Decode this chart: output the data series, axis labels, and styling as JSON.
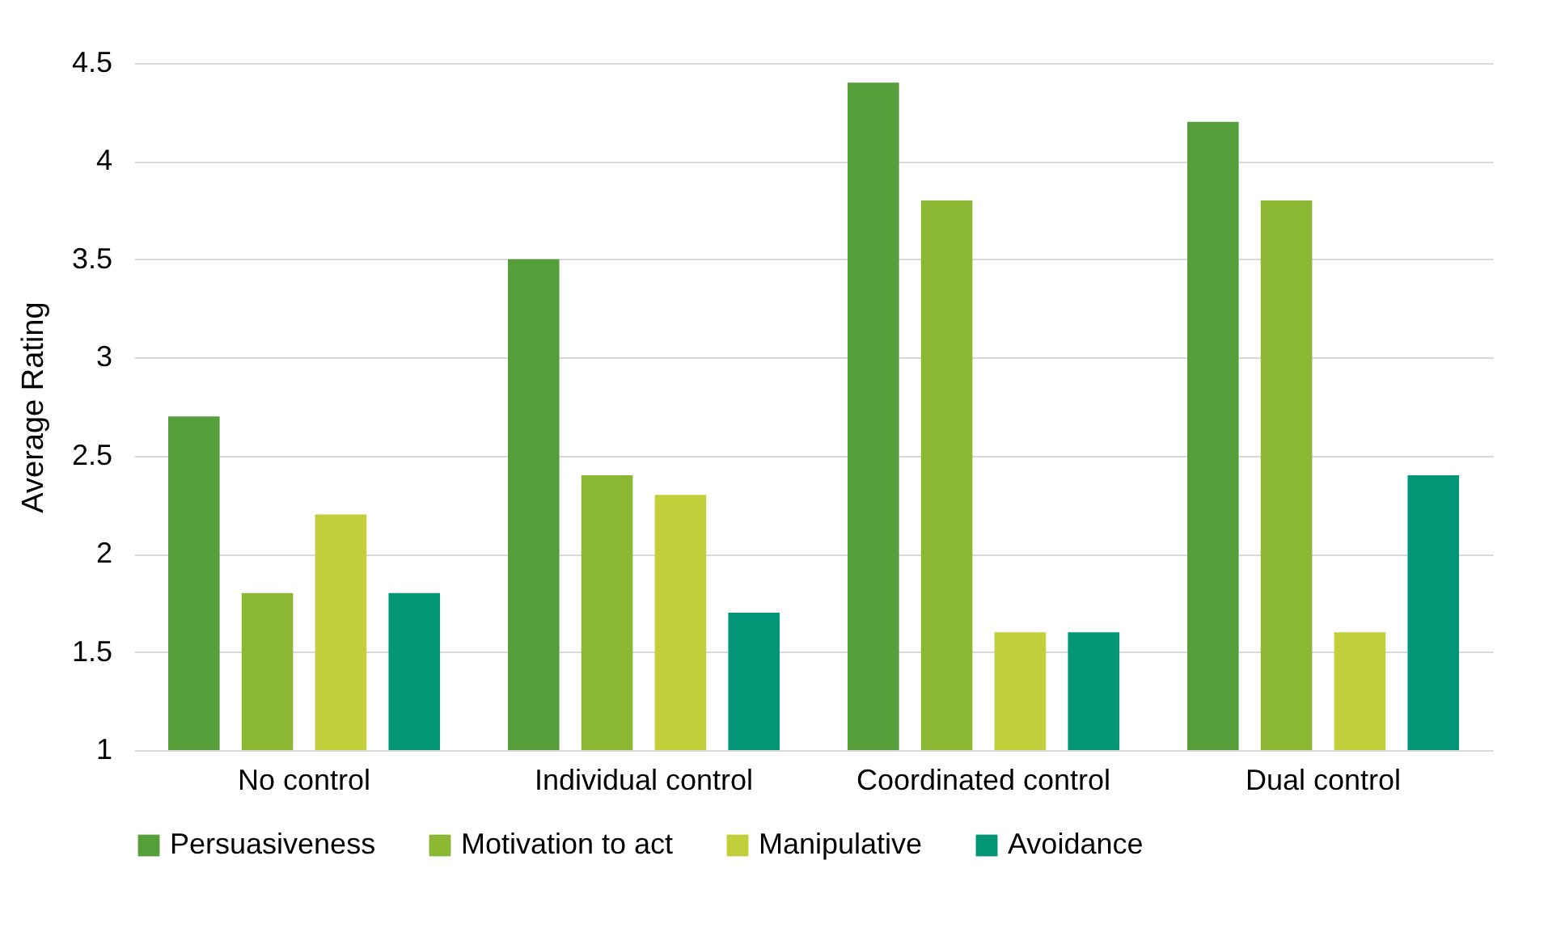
{
  "chart_data": {
    "type": "bar",
    "ylabel": "Average Rating",
    "categories": [
      "No control",
      "Individual control",
      "Coordinated control",
      "Dual control"
    ],
    "series": [
      {
        "name": "Persuasiveness",
        "color": "#559e3a",
        "values": [
          2.7,
          3.5,
          4.4,
          4.2
        ]
      },
      {
        "name": "Motivation to act",
        "color": "#8ab833",
        "values": [
          1.8,
          2.4,
          3.8,
          3.8
        ]
      },
      {
        "name": "Manipulative",
        "color": "#c0cf3a",
        "values": [
          2.2,
          2.3,
          1.6,
          1.6
        ]
      },
      {
        "name": "Avoidance",
        "color": "#029676",
        "values": [
          1.8,
          1.7,
          1.6,
          2.4
        ]
      }
    ],
    "ylim": [
      1,
      4.5
    ],
    "yticks": [
      1,
      1.5,
      2,
      2.5,
      3,
      3.5,
      4,
      4.5
    ],
    "grid": "y",
    "legend": "bottom"
  }
}
